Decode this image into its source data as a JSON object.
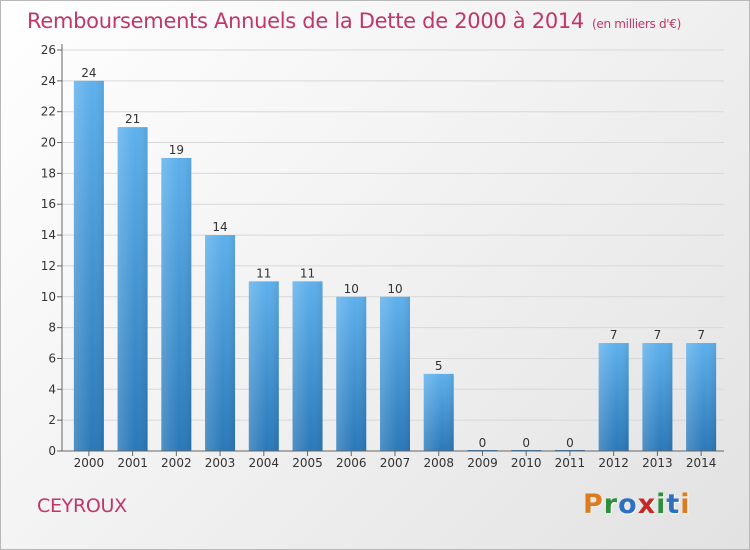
{
  "header": {
    "title": "Remboursements Annuels de la Dette de 2000 à 2014",
    "subtitle": "(en milliers d'€)"
  },
  "place_name": "CEYROUX",
  "logo": {
    "letters": [
      "P",
      "r",
      "o",
      "x",
      "i",
      "t",
      "i"
    ],
    "colors": [
      "#e07a1f",
      "#2c8f3a",
      "#2f6fc2",
      "#c62828",
      "#2c8f3a",
      "#2f6fc2",
      "#e07a1f"
    ]
  },
  "colors": {
    "bar_top": "#5eb0ec",
    "bar_bottom": "#2a78b8",
    "axis": "#666666",
    "grid": "#d8d8d8",
    "text": "#333333"
  },
  "chart_data": {
    "type": "bar",
    "title": "Remboursements Annuels de la Dette de 2000 à 2014",
    "unit_label": "(en milliers d'€)",
    "xlabel": "",
    "ylabel": "",
    "categories": [
      "2000",
      "2001",
      "2002",
      "2003",
      "2004",
      "2005",
      "2006",
      "2007",
      "2008",
      "2009",
      "2010",
      "2011",
      "2012",
      "2013",
      "2014"
    ],
    "values": [
      24,
      21,
      19,
      14,
      11,
      11,
      10,
      10,
      5,
      0,
      0,
      0,
      7,
      7,
      7
    ],
    "ylim": [
      0,
      26
    ],
    "yticks": [
      0,
      2,
      4,
      6,
      8,
      10,
      12,
      14,
      16,
      18,
      20,
      22,
      24,
      26
    ],
    "grid": true,
    "legend": "none"
  }
}
